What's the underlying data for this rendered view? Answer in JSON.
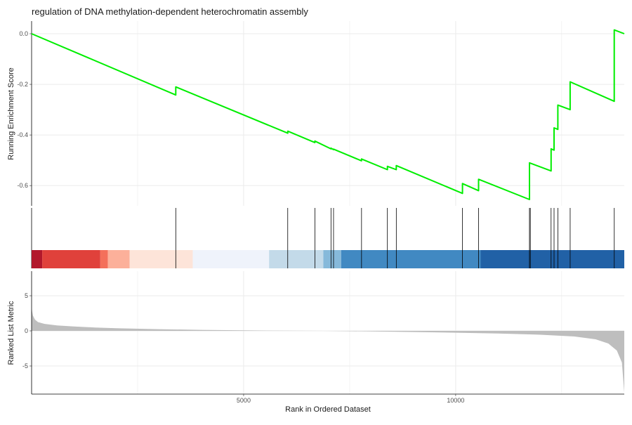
{
  "chart_data": {
    "type": "line",
    "title": "regulation of DNA methylation-dependent heterochromatin assembly",
    "xlabel": "Rank in Ordered Dataset",
    "x_ticks": [
      5000,
      10000
    ],
    "xlim": [
      0,
      13976
    ],
    "colors": {
      "es_line": "#00ee00",
      "metric_fill": "#bebebe",
      "grid": "#ebebeb",
      "hit_line": "#000000"
    },
    "enrichment": {
      "ylabel": "Running Enrichment Score",
      "ylim": [
        -0.68,
        0.05
      ],
      "y_ticks": [
        0.0,
        -0.2,
        -0.4,
        -0.6
      ],
      "y_tick_labels": [
        "0.0",
        "-0.2",
        "-0.4",
        "-0.6"
      ],
      "points": [
        [
          0,
          0.0
        ],
        [
          3400,
          -0.242
        ],
        [
          3400,
          -0.21
        ],
        [
          6040,
          -0.393
        ],
        [
          6040,
          -0.385
        ],
        [
          6680,
          -0.43
        ],
        [
          6680,
          -0.424
        ],
        [
          7060,
          -0.455
        ],
        [
          7060,
          -0.452
        ],
        [
          7120,
          -0.458
        ],
        [
          7120,
          -0.456
        ],
        [
          7780,
          -0.502
        ],
        [
          7780,
          -0.495
        ],
        [
          8390,
          -0.537
        ],
        [
          8390,
          -0.524
        ],
        [
          8600,
          -0.537
        ],
        [
          8600,
          -0.521
        ],
        [
          10160,
          -0.631
        ],
        [
          10160,
          -0.592
        ],
        [
          10540,
          -0.62
        ],
        [
          10540,
          -0.575
        ],
        [
          11740,
          -0.655
        ],
        [
          11740,
          -0.51
        ],
        [
          12250,
          -0.542
        ],
        [
          12250,
          -0.455
        ],
        [
          12320,
          -0.46
        ],
        [
          12320,
          -0.372
        ],
        [
          12410,
          -0.378
        ],
        [
          12410,
          -0.282
        ],
        [
          12700,
          -0.3
        ],
        [
          12700,
          -0.19
        ],
        [
          13740,
          -0.267
        ],
        [
          13740,
          0.015
        ],
        [
          13976,
          0.0
        ]
      ]
    },
    "hits": {
      "positions": [
        3400,
        6040,
        6680,
        7060,
        7120,
        7780,
        8390,
        8600,
        10160,
        10540,
        11740,
        11760,
        12250,
        12320,
        12410,
        12700,
        13740
      ]
    },
    "heat_bands": [
      {
        "start": 0,
        "end": 250,
        "color": "#b2182b"
      },
      {
        "start": 250,
        "end": 1620,
        "color": "#e0413b"
      },
      {
        "start": 1620,
        "end": 1800,
        "color": "#f4705b"
      },
      {
        "start": 1800,
        "end": 2310,
        "color": "#fcb09a"
      },
      {
        "start": 2310,
        "end": 3800,
        "color": "#fde4d9"
      },
      {
        "start": 3800,
        "end": 5600,
        "color": "#eff3fb"
      },
      {
        "start": 5600,
        "end": 6880,
        "color": "#c3dae9"
      },
      {
        "start": 6880,
        "end": 7300,
        "color": "#86b9da"
      },
      {
        "start": 7300,
        "end": 10590,
        "color": "#4189c2"
      },
      {
        "start": 10590,
        "end": 13976,
        "color": "#2161a6"
      }
    ],
    "metric": {
      "ylabel": "Ranked List Metric",
      "ylim": [
        -9.0,
        8.5
      ],
      "y_ticks": [
        5,
        0,
        -5
      ],
      "y_tick_labels": [
        "5",
        "0",
        "-5"
      ],
      "points": [
        [
          0,
          3.2
        ],
        [
          30,
          2.2
        ],
        [
          80,
          1.6
        ],
        [
          150,
          1.25
        ],
        [
          300,
          1.0
        ],
        [
          600,
          0.78
        ],
        [
          1000,
          0.62
        ],
        [
          1500,
          0.48
        ],
        [
          2000,
          0.38
        ],
        [
          3000,
          0.24
        ],
        [
          4000,
          0.14
        ],
        [
          5000,
          0.07
        ],
        [
          6000,
          0.02
        ],
        [
          6880,
          0.0
        ],
        [
          8000,
          -0.08
        ],
        [
          9000,
          -0.16
        ],
        [
          10000,
          -0.26
        ],
        [
          11000,
          -0.38
        ],
        [
          12000,
          -0.55
        ],
        [
          12800,
          -0.8
        ],
        [
          13300,
          -1.2
        ],
        [
          13600,
          -1.8
        ],
        [
          13800,
          -2.8
        ],
        [
          13920,
          -4.5
        ],
        [
          13976,
          -8.8
        ]
      ]
    }
  }
}
